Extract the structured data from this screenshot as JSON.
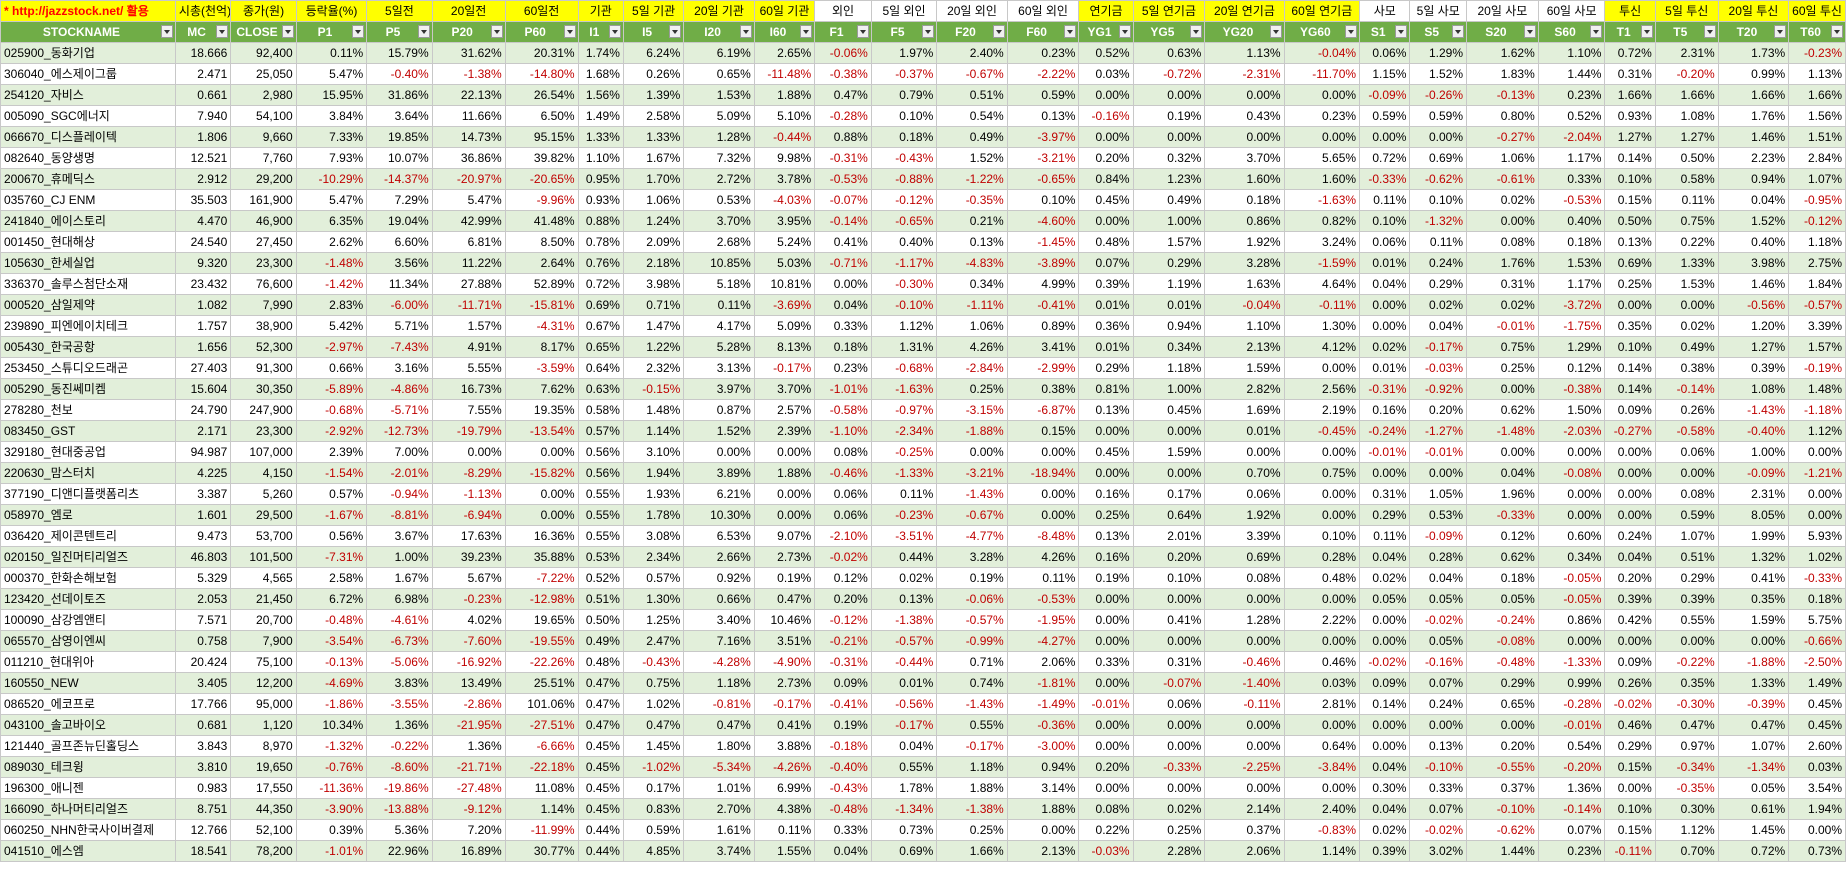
{
  "header_top": [
    "* http://jazzstock.net/ 활용",
    "시총(천억)",
    "종가(원)",
    "등락율(%)",
    "5일전",
    "20일전",
    "60일전",
    "기관",
    "5일 기관",
    "20일 기관",
    "60일 기관",
    "외인",
    "5일 외인",
    "20일 외인",
    "60일 외인",
    "연기금",
    "5일 연기금",
    "20일 연기금",
    "60일 연기금",
    "사모",
    "5일 사모",
    "20일 사모",
    "60일 사모",
    "투신",
    "5일 투신",
    "20일 투신",
    "60일 투신"
  ],
  "header_cols": [
    "STOCKNAME",
    "MC",
    "CLOSE",
    "P1",
    "P5",
    "P20",
    "P60",
    "I1",
    "I5",
    "I20",
    "I60",
    "F1",
    "F5",
    "F20",
    "F60",
    "YG1",
    "YG5",
    "YG20",
    "YG60",
    "S1",
    "S5",
    "S20",
    "S60",
    "T1",
    "T5",
    "T20",
    "T60"
  ],
  "rows": [
    [
      "025900_동화기업",
      "18.666",
      "92,400",
      "0.11%",
      "15.79%",
      "31.62%",
      "20.31%",
      "1.74%",
      "6.24%",
      "6.19%",
      "2.65%",
      "-0.06%",
      "1.97%",
      "2.40%",
      "0.23%",
      "0.52%",
      "0.63%",
      "1.13%",
      "-0.04%",
      "0.06%",
      "1.29%",
      "1.62%",
      "1.10%",
      "0.72%",
      "2.31%",
      "1.73%",
      "-0.23%"
    ],
    [
      "306040_에스제이그룹",
      "2.471",
      "25,050",
      "5.47%",
      "-0.40%",
      "-1.38%",
      "-14.80%",
      "1.68%",
      "0.26%",
      "0.65%",
      "-11.48%",
      "-0.38%",
      "-0.37%",
      "-0.67%",
      "-2.22%",
      "0.03%",
      "-0.72%",
      "-2.31%",
      "-11.70%",
      "1.15%",
      "1.52%",
      "1.83%",
      "1.44%",
      "0.31%",
      "-0.20%",
      "0.99%",
      "1.13%"
    ],
    [
      "254120_자비스",
      "0.661",
      "2,980",
      "15.95%",
      "31.86%",
      "22.13%",
      "26.54%",
      "1.56%",
      "1.39%",
      "1.53%",
      "1.88%",
      "0.47%",
      "0.79%",
      "0.51%",
      "0.59%",
      "0.00%",
      "0.00%",
      "0.00%",
      "0.00%",
      "-0.09%",
      "-0.26%",
      "-0.13%",
      "0.23%",
      "1.66%",
      "1.66%",
      "1.66%",
      "1.66%"
    ],
    [
      "005090_SGC에너지",
      "7.940",
      "54,100",
      "3.84%",
      "3.64%",
      "11.66%",
      "6.50%",
      "1.49%",
      "2.58%",
      "5.09%",
      "5.10%",
      "-0.28%",
      "0.10%",
      "0.54%",
      "0.13%",
      "-0.16%",
      "0.19%",
      "0.43%",
      "0.23%",
      "0.59%",
      "0.59%",
      "0.80%",
      "0.52%",
      "0.93%",
      "1.08%",
      "1.76%",
      "1.56%"
    ],
    [
      "066670_디스플레이텍",
      "1.806",
      "9,660",
      "7.33%",
      "19.85%",
      "14.73%",
      "95.15%",
      "1.33%",
      "1.33%",
      "1.28%",
      "-0.44%",
      "0.88%",
      "0.18%",
      "0.49%",
      "-3.97%",
      "0.00%",
      "0.00%",
      "0.00%",
      "0.00%",
      "0.00%",
      "0.00%",
      "-0.27%",
      "-2.04%",
      "1.27%",
      "1.27%",
      "1.46%",
      "1.51%"
    ],
    [
      "082640_동양생명",
      "12.521",
      "7,760",
      "7.93%",
      "10.07%",
      "36.86%",
      "39.82%",
      "1.10%",
      "1.67%",
      "7.32%",
      "9.98%",
      "-0.31%",
      "-0.43%",
      "1.52%",
      "-3.21%",
      "0.20%",
      "0.32%",
      "3.70%",
      "5.65%",
      "0.72%",
      "0.69%",
      "1.06%",
      "1.17%",
      "0.14%",
      "0.50%",
      "2.23%",
      "2.84%"
    ],
    [
      "200670_휴메딕스",
      "2.912",
      "29,200",
      "-10.29%",
      "-14.37%",
      "-20.97%",
      "-20.65%",
      "0.95%",
      "1.70%",
      "2.72%",
      "3.78%",
      "-0.53%",
      "-0.88%",
      "-1.22%",
      "-0.65%",
      "0.84%",
      "1.23%",
      "1.60%",
      "1.60%",
      "-0.33%",
      "-0.62%",
      "-0.61%",
      "0.33%",
      "0.10%",
      "0.58%",
      "0.94%",
      "1.07%"
    ],
    [
      "035760_CJ ENM",
      "35.503",
      "161,900",
      "5.47%",
      "7.29%",
      "5.47%",
      "-9.96%",
      "0.93%",
      "1.06%",
      "0.53%",
      "-4.03%",
      "-0.07%",
      "-0.12%",
      "-0.35%",
      "0.10%",
      "0.45%",
      "0.49%",
      "0.18%",
      "-1.63%",
      "0.11%",
      "0.10%",
      "0.02%",
      "-0.53%",
      "0.15%",
      "0.11%",
      "0.04%",
      "-0.95%"
    ],
    [
      "241840_에이스토리",
      "4.470",
      "46,900",
      "6.35%",
      "19.04%",
      "42.99%",
      "41.48%",
      "0.88%",
      "1.24%",
      "3.70%",
      "3.95%",
      "-0.14%",
      "-0.65%",
      "0.21%",
      "-4.60%",
      "0.00%",
      "1.00%",
      "0.86%",
      "0.82%",
      "0.10%",
      "-1.32%",
      "0.00%",
      "0.40%",
      "0.50%",
      "0.75%",
      "1.52%",
      "-0.12%"
    ],
    [
      "001450_현대해상",
      "24.540",
      "27,450",
      "2.62%",
      "6.60%",
      "6.81%",
      "8.50%",
      "0.78%",
      "2.09%",
      "2.68%",
      "5.24%",
      "0.41%",
      "0.40%",
      "0.13%",
      "-1.45%",
      "0.48%",
      "1.57%",
      "1.92%",
      "3.24%",
      "0.06%",
      "0.11%",
      "0.08%",
      "0.18%",
      "0.13%",
      "0.22%",
      "0.40%",
      "1.18%"
    ],
    [
      "105630_한세실업",
      "9.320",
      "23,300",
      "-1.48%",
      "3.56%",
      "11.22%",
      "2.64%",
      "0.76%",
      "2.18%",
      "10.85%",
      "5.03%",
      "-0.71%",
      "-1.17%",
      "-4.83%",
      "-3.89%",
      "0.07%",
      "0.29%",
      "3.28%",
      "-1.59%",
      "0.01%",
      "0.24%",
      "1.76%",
      "1.53%",
      "0.69%",
      "1.33%",
      "3.98%",
      "2.75%"
    ],
    [
      "336370_솔루스첨단소재",
      "23.432",
      "76,600",
      "-1.42%",
      "11.34%",
      "27.88%",
      "52.89%",
      "0.72%",
      "3.98%",
      "5.18%",
      "10.81%",
      "0.00%",
      "-0.30%",
      "0.34%",
      "4.99%",
      "0.39%",
      "1.19%",
      "1.63%",
      "4.64%",
      "0.04%",
      "0.29%",
      "0.31%",
      "1.17%",
      "0.25%",
      "1.53%",
      "1.46%",
      "1.84%"
    ],
    [
      "000520_삼일제약",
      "1.082",
      "7,990",
      "2.83%",
      "-6.00%",
      "-11.71%",
      "-15.81%",
      "0.69%",
      "0.71%",
      "0.11%",
      "-3.69%",
      "0.04%",
      "-0.10%",
      "-1.11%",
      "-0.41%",
      "0.01%",
      "0.01%",
      "-0.04%",
      "-0.11%",
      "0.00%",
      "0.02%",
      "0.02%",
      "-3.72%",
      "0.00%",
      "0.00%",
      "-0.56%",
      "-0.57%"
    ],
    [
      "239890_피엔에이치테크",
      "1.757",
      "38,900",
      "5.42%",
      "5.71%",
      "1.57%",
      "-4.31%",
      "0.67%",
      "1.47%",
      "4.17%",
      "5.09%",
      "0.33%",
      "1.12%",
      "1.06%",
      "0.89%",
      "0.36%",
      "0.94%",
      "1.10%",
      "1.30%",
      "0.00%",
      "0.04%",
      "-0.01%",
      "-1.75%",
      "0.35%",
      "0.02%",
      "1.20%",
      "3.39%"
    ],
    [
      "005430_한국공항",
      "1.656",
      "52,300",
      "-2.97%",
      "-7.43%",
      "4.91%",
      "8.17%",
      "0.65%",
      "1.22%",
      "5.28%",
      "8.13%",
      "0.18%",
      "1.31%",
      "4.26%",
      "3.41%",
      "0.01%",
      "0.34%",
      "2.13%",
      "4.12%",
      "0.02%",
      "-0.17%",
      "0.75%",
      "1.29%",
      "0.10%",
      "0.49%",
      "1.27%",
      "1.57%"
    ],
    [
      "253450_스튜디오드래곤",
      "27.403",
      "91,300",
      "0.66%",
      "3.16%",
      "5.55%",
      "-3.59%",
      "0.64%",
      "2.32%",
      "3.13%",
      "-0.17%",
      "0.23%",
      "-0.68%",
      "-2.84%",
      "-2.99%",
      "0.29%",
      "1.18%",
      "1.59%",
      "0.00%",
      "0.01%",
      "-0.03%",
      "0.25%",
      "0.12%",
      "0.14%",
      "0.38%",
      "0.39%",
      "-0.19%"
    ],
    [
      "005290_동진쎄미켐",
      "15.604",
      "30,350",
      "-5.89%",
      "-4.86%",
      "16.73%",
      "7.62%",
      "0.63%",
      "-0.15%",
      "3.97%",
      "3.70%",
      "-1.01%",
      "-1.63%",
      "0.25%",
      "0.38%",
      "0.81%",
      "1.00%",
      "2.82%",
      "2.56%",
      "-0.31%",
      "-0.92%",
      "0.00%",
      "-0.38%",
      "0.14%",
      "-0.14%",
      "1.08%",
      "1.48%"
    ],
    [
      "278280_천보",
      "24.790",
      "247,900",
      "-0.68%",
      "-5.71%",
      "7.55%",
      "19.35%",
      "0.58%",
      "1.48%",
      "0.87%",
      "2.57%",
      "-0.58%",
      "-0.97%",
      "-3.15%",
      "-6.87%",
      "0.13%",
      "0.45%",
      "1.69%",
      "2.19%",
      "0.16%",
      "0.20%",
      "0.62%",
      "1.50%",
      "0.09%",
      "0.26%",
      "-1.43%",
      "-1.18%"
    ],
    [
      "083450_GST",
      "2.171",
      "23,300",
      "-2.92%",
      "-12.73%",
      "-19.79%",
      "-13.54%",
      "0.57%",
      "1.14%",
      "1.52%",
      "2.39%",
      "-1.10%",
      "-2.34%",
      "-1.88%",
      "0.15%",
      "0.00%",
      "0.00%",
      "0.01%",
      "-0.45%",
      "-0.24%",
      "-1.27%",
      "-1.48%",
      "-2.03%",
      "-0.27%",
      "-0.58%",
      "-0.40%",
      "1.12%"
    ],
    [
      "329180_현대중공업",
      "94.987",
      "107,000",
      "2.39%",
      "7.00%",
      "0.00%",
      "0.00%",
      "0.56%",
      "3.10%",
      "0.00%",
      "0.00%",
      "0.08%",
      "-0.25%",
      "0.00%",
      "0.00%",
      "0.45%",
      "1.59%",
      "0.00%",
      "0.00%",
      "-0.01%",
      "-0.01%",
      "0.00%",
      "0.00%",
      "0.00%",
      "0.06%",
      "1.00%",
      "0.00%"
    ],
    [
      "220630_맘스터치",
      "4.225",
      "4,150",
      "-1.54%",
      "-2.01%",
      "-8.29%",
      "-15.82%",
      "0.56%",
      "1.94%",
      "3.89%",
      "1.88%",
      "-0.46%",
      "-1.33%",
      "-3.21%",
      "-18.94%",
      "0.00%",
      "0.00%",
      "0.70%",
      "0.75%",
      "0.00%",
      "0.00%",
      "0.04%",
      "-0.08%",
      "0.00%",
      "0.00%",
      "-0.09%",
      "-1.21%"
    ],
    [
      "377190_디앤디플랫폼리츠",
      "3.387",
      "5,260",
      "0.57%",
      "-0.94%",
      "-1.13%",
      "0.00%",
      "0.55%",
      "1.93%",
      "6.21%",
      "0.00%",
      "0.06%",
      "0.11%",
      "-1.43%",
      "0.00%",
      "0.16%",
      "0.17%",
      "0.06%",
      "0.00%",
      "0.31%",
      "1.05%",
      "1.96%",
      "0.00%",
      "0.00%",
      "0.08%",
      "2.31%",
      "0.00%"
    ],
    [
      "058970_엠로",
      "1.601",
      "29,500",
      "-1.67%",
      "-8.81%",
      "-6.94%",
      "0.00%",
      "0.55%",
      "1.78%",
      "10.30%",
      "0.00%",
      "0.06%",
      "-0.23%",
      "-0.67%",
      "0.00%",
      "0.25%",
      "0.64%",
      "1.92%",
      "0.00%",
      "0.29%",
      "0.53%",
      "-0.33%",
      "0.00%",
      "0.00%",
      "0.59%",
      "8.05%",
      "0.00%"
    ],
    [
      "036420_제이콘텐트리",
      "9.473",
      "53,700",
      "0.56%",
      "3.67%",
      "17.63%",
      "16.36%",
      "0.55%",
      "3.08%",
      "6.53%",
      "9.07%",
      "-2.10%",
      "-3.51%",
      "-4.77%",
      "-8.48%",
      "0.13%",
      "2.01%",
      "3.39%",
      "0.10%",
      "0.11%",
      "-0.09%",
      "0.12%",
      "0.60%",
      "0.24%",
      "1.07%",
      "1.99%",
      "5.93%"
    ],
    [
      "020150_일진머티리얼즈",
      "46.803",
      "101,500",
      "-7.31%",
      "1.00%",
      "39.23%",
      "35.88%",
      "0.53%",
      "2.34%",
      "2.66%",
      "2.73%",
      "-0.02%",
      "0.44%",
      "3.28%",
      "4.26%",
      "0.16%",
      "0.20%",
      "0.69%",
      "0.28%",
      "0.04%",
      "0.28%",
      "0.62%",
      "0.34%",
      "0.04%",
      "0.51%",
      "1.32%",
      "1.02%"
    ],
    [
      "000370_한화손해보험",
      "5.329",
      "4,565",
      "2.58%",
      "1.67%",
      "5.67%",
      "-7.22%",
      "0.52%",
      "0.57%",
      "0.92%",
      "0.19%",
      "0.12%",
      "0.02%",
      "0.19%",
      "0.11%",
      "0.19%",
      "0.10%",
      "0.08%",
      "0.48%",
      "0.02%",
      "0.04%",
      "0.18%",
      "-0.05%",
      "0.20%",
      "0.29%",
      "0.41%",
      "-0.33%"
    ],
    [
      "123420_선데이토즈",
      "2.053",
      "21,450",
      "6.72%",
      "6.98%",
      "-0.23%",
      "-12.98%",
      "0.51%",
      "1.30%",
      "0.66%",
      "0.47%",
      "0.20%",
      "0.13%",
      "-0.06%",
      "-0.53%",
      "0.00%",
      "0.00%",
      "0.00%",
      "0.00%",
      "0.05%",
      "0.05%",
      "0.05%",
      "-0.05%",
      "0.39%",
      "0.39%",
      "0.35%",
      "0.18%"
    ],
    [
      "100090_삼강엠앤티",
      "7.571",
      "20,700",
      "-0.48%",
      "-4.61%",
      "4.02%",
      "19.65%",
      "0.50%",
      "1.25%",
      "3.40%",
      "10.46%",
      "-0.12%",
      "-1.38%",
      "-0.57%",
      "-1.95%",
      "0.00%",
      "0.41%",
      "1.28%",
      "2.22%",
      "0.00%",
      "-0.02%",
      "-0.24%",
      "0.86%",
      "0.42%",
      "0.55%",
      "1.59%",
      "5.75%"
    ],
    [
      "065570_삼영이엔씨",
      "0.758",
      "7,900",
      "-3.54%",
      "-6.73%",
      "-7.60%",
      "-19.55%",
      "0.49%",
      "2.47%",
      "7.16%",
      "3.51%",
      "-0.21%",
      "-0.57%",
      "-0.99%",
      "-4.27%",
      "0.00%",
      "0.00%",
      "0.00%",
      "0.00%",
      "0.00%",
      "0.05%",
      "-0.08%",
      "0.00%",
      "0.00%",
      "0.00%",
      "0.00%",
      "-0.66%"
    ],
    [
      "011210_현대위아",
      "20.424",
      "75,100",
      "-0.13%",
      "-5.06%",
      "-16.92%",
      "-22.26%",
      "0.48%",
      "-0.43%",
      "-4.28%",
      "-4.90%",
      "-0.31%",
      "-0.44%",
      "0.71%",
      "2.06%",
      "0.33%",
      "0.31%",
      "-0.46%",
      "0.46%",
      "-0.02%",
      "-0.16%",
      "-0.48%",
      "-1.33%",
      "0.09%",
      "-0.22%",
      "-1.88%",
      "-2.50%"
    ],
    [
      "160550_NEW",
      "3.405",
      "12,200",
      "-4.69%",
      "3.83%",
      "13.49%",
      "25.51%",
      "0.47%",
      "0.75%",
      "1.18%",
      "2.73%",
      "0.09%",
      "0.01%",
      "0.74%",
      "-1.81%",
      "0.00%",
      "-0.07%",
      "-1.40%",
      "0.03%",
      "0.09%",
      "0.07%",
      "0.29%",
      "0.99%",
      "0.26%",
      "0.35%",
      "1.33%",
      "1.49%"
    ],
    [
      "086520_에코프로",
      "17.766",
      "95,000",
      "-1.86%",
      "-3.55%",
      "-2.86%",
      "101.06%",
      "0.47%",
      "1.02%",
      "-0.81%",
      "-0.17%",
      "-0.41%",
      "-0.56%",
      "-1.43%",
      "-1.49%",
      "-0.01%",
      "0.06%",
      "-0.11%",
      "2.81%",
      "0.14%",
      "0.24%",
      "0.65%",
      "-0.28%",
      "-0.02%",
      "-0.30%",
      "-0.39%",
      "0.45%"
    ],
    [
      "043100_솔고바이오",
      "0.681",
      "1,120",
      "10.34%",
      "1.36%",
      "-21.95%",
      "-27.51%",
      "0.47%",
      "0.47%",
      "0.47%",
      "0.41%",
      "0.19%",
      "-0.17%",
      "0.55%",
      "-0.36%",
      "0.00%",
      "0.00%",
      "0.00%",
      "0.00%",
      "0.00%",
      "0.00%",
      "0.00%",
      "-0.01%",
      "0.46%",
      "0.47%",
      "0.47%",
      "0.45%"
    ],
    [
      "121440_골프존뉴딘홀딩스",
      "3.843",
      "8,970",
      "-1.32%",
      "-0.22%",
      "1.36%",
      "-6.66%",
      "0.45%",
      "1.45%",
      "1.80%",
      "3.88%",
      "-0.18%",
      "0.04%",
      "-0.17%",
      "-3.00%",
      "0.00%",
      "0.00%",
      "0.00%",
      "0.64%",
      "0.00%",
      "0.13%",
      "0.20%",
      "0.54%",
      "0.29%",
      "0.97%",
      "1.07%",
      "2.60%"
    ],
    [
      "089030_테크윙",
      "3.810",
      "19,650",
      "-0.76%",
      "-8.60%",
      "-21.71%",
      "-22.18%",
      "0.45%",
      "-1.02%",
      "-5.34%",
      "-4.26%",
      "-0.40%",
      "0.55%",
      "1.18%",
      "0.94%",
      "0.20%",
      "-0.33%",
      "-2.25%",
      "-3.84%",
      "0.04%",
      "-0.10%",
      "-0.55%",
      "-0.20%",
      "0.15%",
      "-0.34%",
      "-1.34%",
      "0.03%"
    ],
    [
      "196300_애니젠",
      "0.983",
      "17,550",
      "-11.36%",
      "-19.86%",
      "-27.48%",
      "11.08%",
      "0.45%",
      "0.17%",
      "1.01%",
      "6.99%",
      "-0.43%",
      "1.78%",
      "1.88%",
      "3.14%",
      "0.00%",
      "0.00%",
      "0.00%",
      "0.00%",
      "0.30%",
      "0.33%",
      "0.37%",
      "1.36%",
      "0.00%",
      "-0.35%",
      "0.05%",
      "3.54%"
    ],
    [
      "166090_하나머티리얼즈",
      "8.751",
      "44,350",
      "-3.90%",
      "-13.88%",
      "-9.12%",
      "1.14%",
      "0.45%",
      "0.83%",
      "2.70%",
      "4.38%",
      "-0.48%",
      "-1.34%",
      "-1.38%",
      "1.88%",
      "0.08%",
      "0.02%",
      "2.14%",
      "2.40%",
      "0.04%",
      "0.07%",
      "-0.10%",
      "-0.14%",
      "0.10%",
      "0.30%",
      "0.61%",
      "1.94%"
    ],
    [
      "060250_NHN한국사이버결제",
      "12.766",
      "52,100",
      "0.39%",
      "5.36%",
      "7.20%",
      "-11.99%",
      "0.44%",
      "0.59%",
      "1.61%",
      "0.11%",
      "0.33%",
      "0.73%",
      "0.25%",
      "0.00%",
      "0.22%",
      "0.25%",
      "0.37%",
      "-0.83%",
      "0.02%",
      "-0.02%",
      "-0.62%",
      "0.07%",
      "0.15%",
      "1.12%",
      "1.45%",
      "0.00%"
    ],
    [
      "041510_에스엠",
      "18.541",
      "78,200",
      "-1.01%",
      "22.96%",
      "16.89%",
      "30.77%",
      "0.44%",
      "4.85%",
      "3.74%",
      "1.55%",
      "0.04%",
      "0.69%",
      "1.66%",
      "2.13%",
      "-0.03%",
      "2.28%",
      "2.06%",
      "1.14%",
      "0.39%",
      "3.02%",
      "1.44%",
      "0.23%",
      "-0.11%",
      "0.70%",
      "0.72%",
      "0.73%"
    ]
  ],
  "colors": {
    "header_bg": "#70ad47",
    "band_bg": "#e2efda",
    "negative": "#c00000",
    "top_yellow": "#ffff00",
    "link_red": "#ff0000"
  }
}
